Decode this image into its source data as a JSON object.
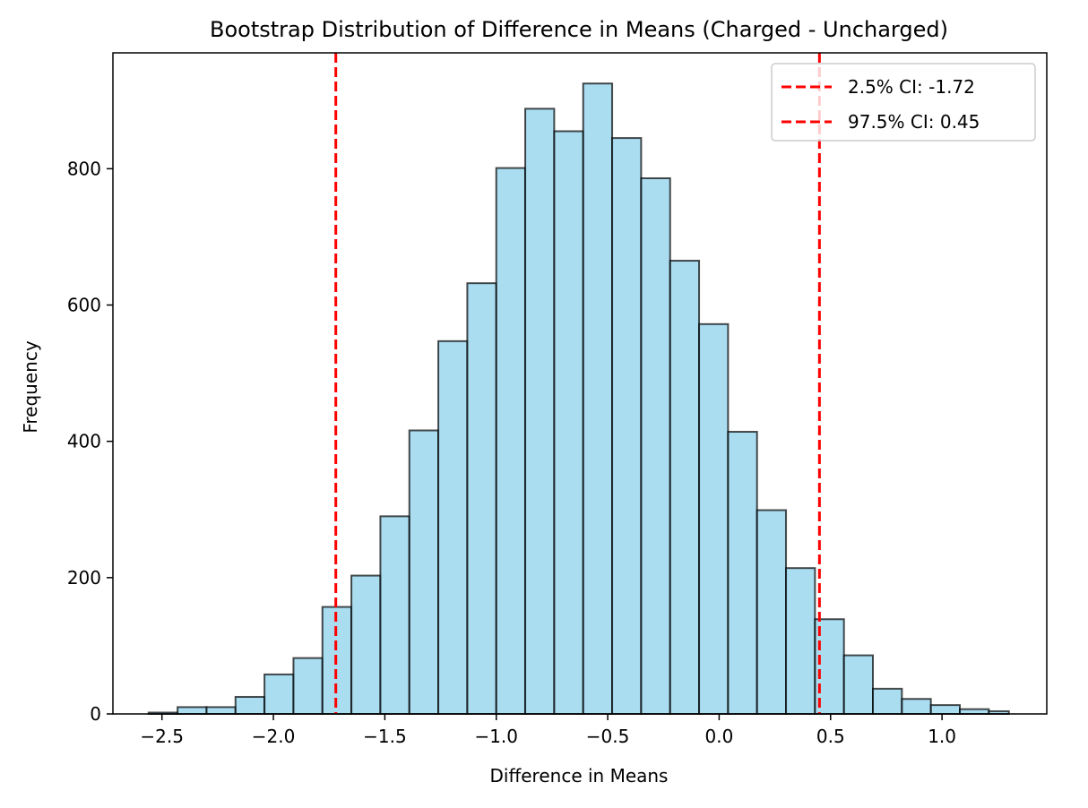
{
  "chart_data": {
    "type": "bar",
    "title": "Bootstrap Distribution of Difference in Means (Charged - Uncharged)",
    "xlabel": "Difference in Means",
    "ylabel": "Frequency",
    "xlim": [
      -2.72,
      1.47
    ],
    "ylim": [
      0,
      970
    ],
    "x_ticks": [
      -2.5,
      -2.0,
      -1.5,
      -1.0,
      -0.5,
      0.0,
      0.5,
      1.0
    ],
    "x_tick_labels": [
      "−2.5",
      "−2.0",
      "−1.5",
      "−1.0",
      "−0.5",
      "0.0",
      "0.5",
      "1.0"
    ],
    "y_ticks": [
      0,
      200,
      400,
      600,
      800
    ],
    "y_tick_labels": [
      "0",
      "200",
      "400",
      "600",
      "800"
    ],
    "grid": false,
    "bin_edges": [
      -2.56,
      -2.43,
      -2.3,
      -2.17,
      -2.04,
      -1.91,
      -1.78,
      -1.65,
      -1.52,
      -1.39,
      -1.26,
      -1.13,
      -1.0,
      -0.87,
      -0.74,
      -0.61,
      -0.48,
      -0.35,
      -0.22,
      -0.09,
      0.04,
      0.17,
      0.3,
      0.43,
      0.56,
      0.69,
      0.82,
      0.95,
      1.08,
      1.21,
      1.3
    ],
    "values": [
      2,
      10,
      10,
      25,
      58,
      82,
      157,
      203,
      290,
      416,
      547,
      632,
      801,
      888,
      855,
      925,
      845,
      786,
      665,
      572,
      414,
      299,
      214,
      139,
      86,
      37,
      22,
      13,
      7,
      4
    ],
    "bar_color": "#87ceeb",
    "bar_edge_color": "#000000",
    "bar_alpha": 0.7,
    "vlines": [
      {
        "x": -1.72,
        "color": "#ff0000",
        "style": "dashed",
        "label": "2.5% CI: -1.72"
      },
      {
        "x": 0.45,
        "color": "#ff0000",
        "style": "dashed",
        "label": "97.5% CI: 0.45"
      }
    ],
    "legend_position": "upper right"
  }
}
